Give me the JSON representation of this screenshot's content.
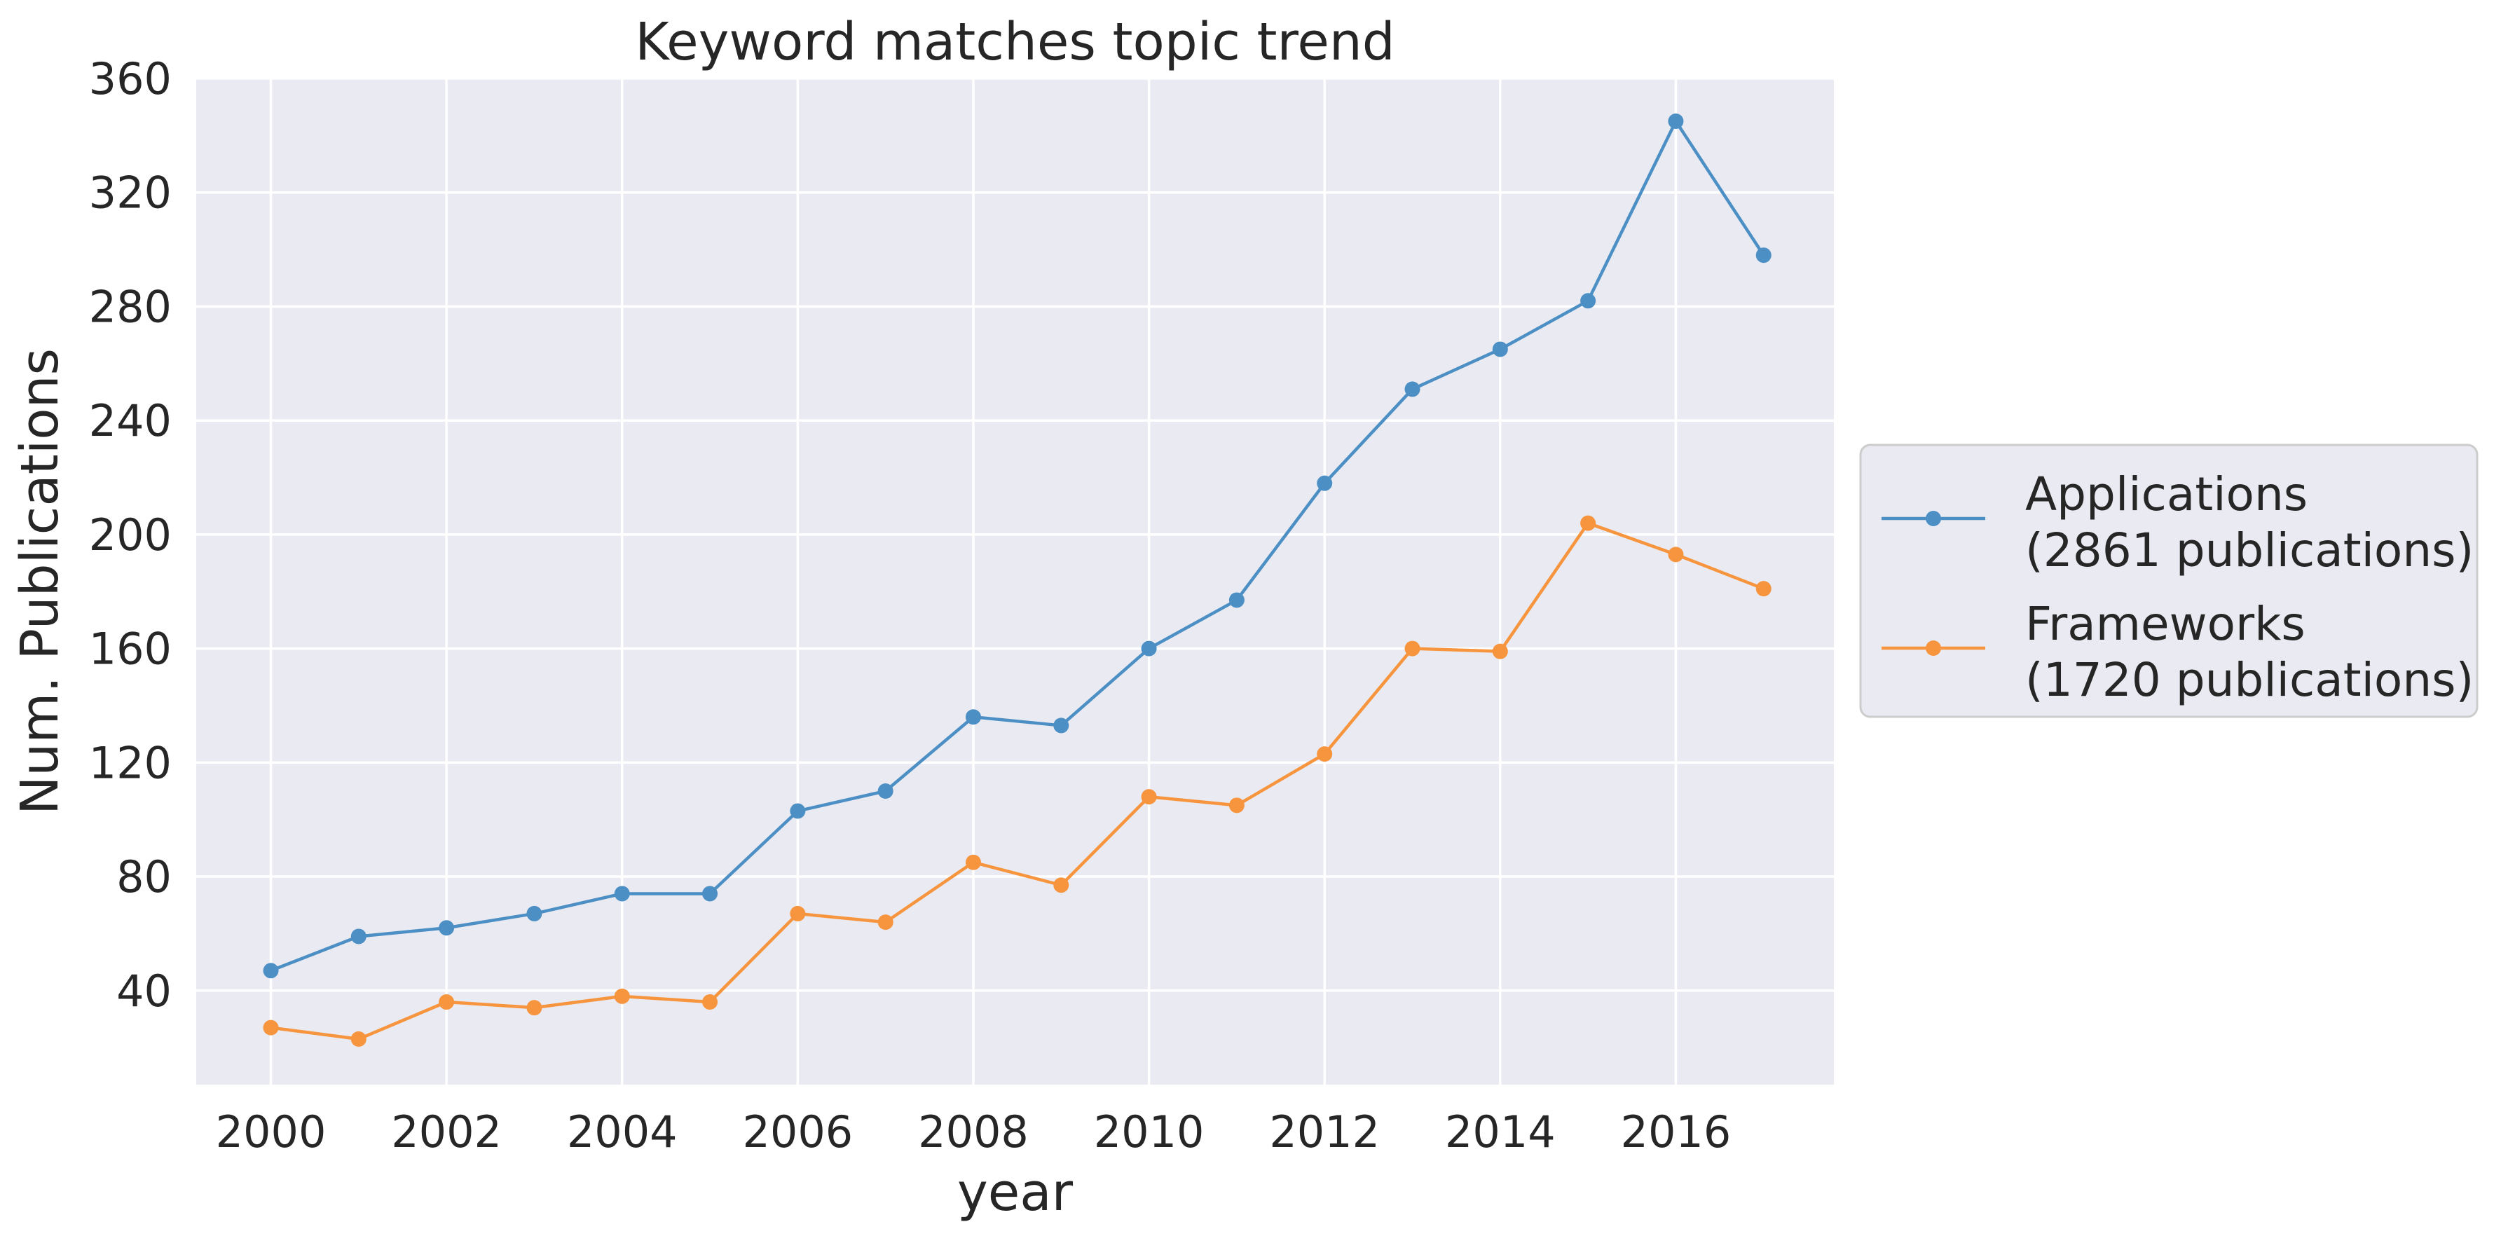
{
  "chart_data": {
    "type": "line",
    "title": "Keyword matches topic trend",
    "xlabel": "year",
    "ylabel": "Num. Publications",
    "x": [
      2000,
      2001,
      2002,
      2003,
      2004,
      2005,
      2006,
      2007,
      2008,
      2009,
      2010,
      2011,
      2012,
      2013,
      2014,
      2015,
      2016,
      2017
    ],
    "x_ticks": [
      2000,
      2002,
      2004,
      2006,
      2008,
      2010,
      2012,
      2014,
      2016
    ],
    "y_ticks": [
      40,
      80,
      120,
      160,
      200,
      240,
      280,
      320,
      360
    ],
    "xlim": [
      1999.15,
      2017.8
    ],
    "ylim": [
      7,
      360
    ],
    "grid": true,
    "legend_position": "right-outside",
    "background": "#eaeaf2",
    "series": [
      {
        "name": "Applications\n(2861 publications)",
        "legend_lines": [
          "Applications",
          "(2861 publications)"
        ],
        "color": "#4c8fc4",
        "marker": "circle",
        "values": [
          47,
          59,
          62,
          67,
          74,
          74,
          103,
          110,
          136,
          133,
          160,
          177,
          218,
          251,
          265,
          282,
          345,
          298
        ]
      },
      {
        "name": "Frameworks\n(1720 publications)",
        "legend_lines": [
          "Frameworks",
          "(1720 publications)"
        ],
        "color": "#f7953e",
        "marker": "circle",
        "values": [
          27,
          23,
          36,
          34,
          38,
          36,
          67,
          64,
          85,
          77,
          108,
          105,
          123,
          160,
          159,
          204,
          193,
          181
        ]
      }
    ]
  }
}
